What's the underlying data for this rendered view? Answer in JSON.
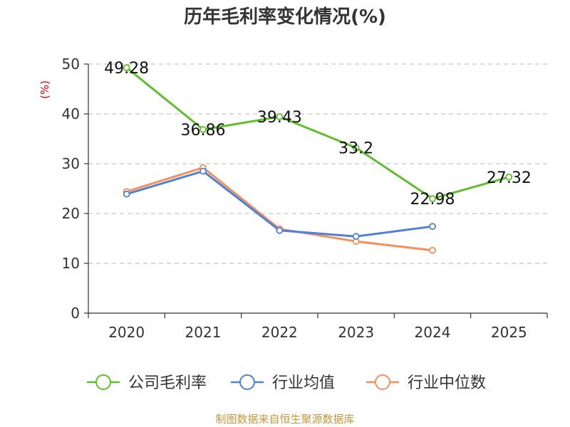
{
  "chart_data": {
    "type": "line",
    "title": "历年毛利率变化情况(%)",
    "ylabel": "(%)",
    "xlabel": "",
    "categories": [
      "2020",
      "2021",
      "2022",
      "2023",
      "2024",
      "2025"
    ],
    "ylim": [
      0,
      50
    ],
    "yticks": [
      "0",
      "10",
      "20",
      "30",
      "40",
      "50"
    ],
    "grid": true,
    "legend_position": "bottom",
    "series": [
      {
        "name": "公司毛利率",
        "color": "#5fbf2a",
        "values": [
          49.28,
          36.86,
          39.43,
          33.2,
          22.98,
          27.32
        ],
        "labels": [
          "49.28",
          "36.86",
          "39.43",
          "33.2",
          "22.98",
          "27.32"
        ]
      },
      {
        "name": "行业均值",
        "color": "#4f7fdc",
        "values": [
          23.9,
          28.5,
          16.6,
          15.4,
          17.4,
          null
        ],
        "labels": []
      },
      {
        "name": "行业中位数",
        "color": "#f5905a",
        "values": [
          24.4,
          29.2,
          16.9,
          14.4,
          12.6,
          null
        ],
        "labels": []
      }
    ],
    "source": "制图数据来自恒生聚源数据库"
  }
}
